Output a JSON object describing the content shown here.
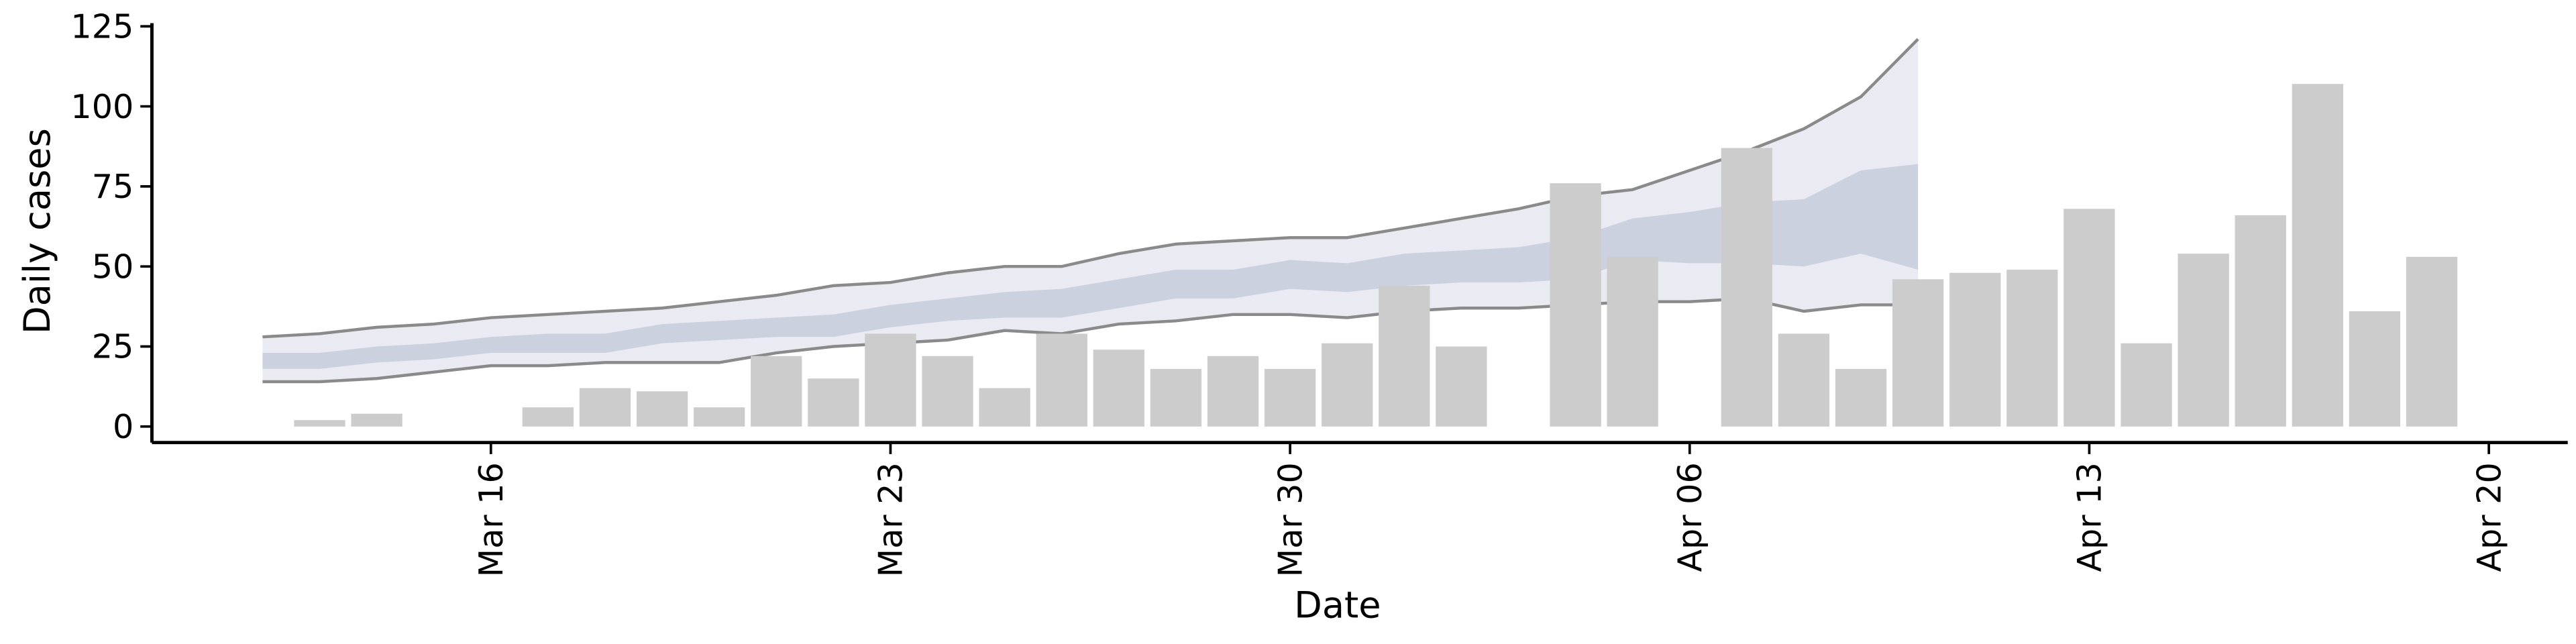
{
  "chart_data": {
    "type": "bar",
    "x_label": "Date",
    "y_label": "Daily cases",
    "categories": [
      "Mar 12",
      "Mar 13",
      "Mar 14",
      "Mar 15",
      "Mar 16",
      "Mar 17",
      "Mar 18",
      "Mar 19",
      "Mar 20",
      "Mar 21",
      "Mar 22",
      "Mar 23",
      "Mar 24",
      "Mar 25",
      "Mar 26",
      "Mar 27",
      "Mar 28",
      "Mar 29",
      "Mar 30",
      "Mar 31",
      "Apr 01",
      "Apr 02",
      "Apr 03",
      "Apr 04",
      "Apr 05",
      "Apr 06",
      "Apr 07",
      "Apr 08",
      "Apr 09",
      "Apr 10",
      "Apr 11",
      "Apr 12",
      "Apr 13",
      "Apr 14",
      "Apr 15",
      "Apr 16",
      "Apr 17",
      "Apr 18",
      "Apr 19",
      "Apr 20"
    ],
    "values": [
      null,
      2,
      4,
      null,
      null,
      6,
      12,
      11,
      6,
      22,
      15,
      29,
      22,
      12,
      29,
      24,
      18,
      22,
      18,
      26,
      44,
      25,
      null,
      76,
      53,
      null,
      87,
      29,
      18,
      46,
      48,
      49,
      68,
      26,
      54,
      66,
      107,
      36,
      53,
      null
    ],
    "color": "#cccccc",
    "bands": [
      {
        "color": "#e6e8f0",
        "line_color": "#8a8a8a",
        "lower": [
          14,
          14,
          15,
          17,
          19,
          19,
          20,
          20,
          20,
          23,
          25,
          26,
          27,
          30,
          29,
          32,
          33,
          35,
          35,
          34,
          36,
          37,
          37,
          38,
          39,
          39,
          40,
          36,
          38,
          38,
          null,
          null,
          null,
          null,
          null,
          null,
          null,
          null,
          null,
          null
        ],
        "upper": [
          28,
          29,
          31,
          32,
          34,
          35,
          36,
          37,
          39,
          41,
          44,
          45,
          48,
          50,
          50,
          54,
          57,
          58,
          59,
          59,
          62,
          65,
          68,
          72,
          74,
          80,
          86,
          93,
          103,
          121,
          null,
          null,
          null,
          null,
          null,
          null,
          null,
          null,
          null,
          null
        ]
      },
      {
        "color": "#c7ccdd",
        "lower": [
          18,
          18,
          20,
          21,
          23,
          23,
          23,
          26,
          27,
          28,
          28,
          31,
          33,
          34,
          34,
          37,
          40,
          40,
          43,
          42,
          44,
          45,
          45,
          46,
          52,
          51,
          51,
          50,
          54,
          49,
          null,
          null,
          null,
          null,
          null,
          null,
          null,
          null,
          null,
          null
        ],
        "upper": [
          23,
          23,
          25,
          26,
          28,
          29,
          29,
          32,
          33,
          34,
          35,
          38,
          40,
          42,
          43,
          46,
          49,
          49,
          52,
          51,
          54,
          55,
          56,
          59,
          65,
          67,
          70,
          71,
          80,
          82,
          null,
          null,
          null,
          null,
          null,
          null,
          null,
          null,
          null,
          null
        ]
      }
    ],
    "ylim": [
      -5,
      126
    ],
    "yticks": [
      0,
      25,
      50,
      75,
      100,
      125
    ],
    "xticks": [
      "Mar 16",
      "Mar 23",
      "Mar 30",
      "Apr 06",
      "Apr 13",
      "Apr 20"
    ]
  }
}
